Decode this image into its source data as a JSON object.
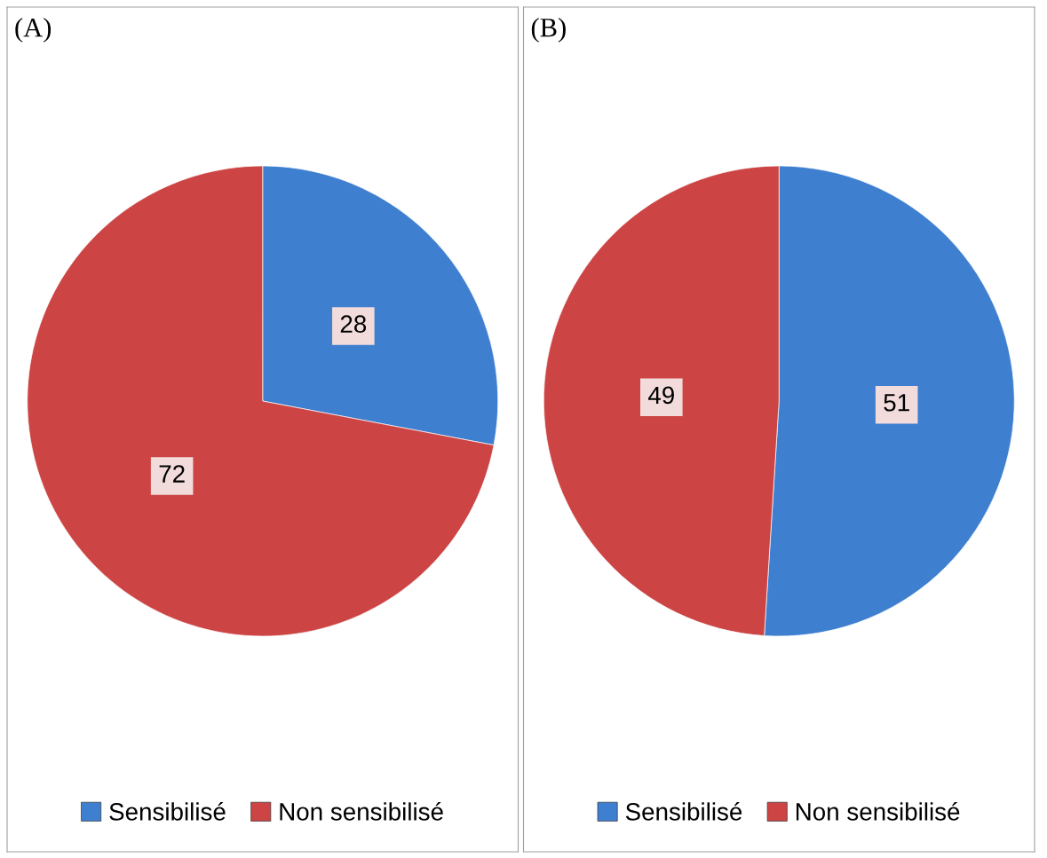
{
  "chart_data": [
    {
      "type": "pie",
      "title": "(A)",
      "categories": [
        "Sensibilisé",
        "Non sensibilisé"
      ],
      "values": [
        28,
        72
      ],
      "colors": [
        "#3f7fcf",
        "#cc4444"
      ],
      "data_labels": true,
      "legend": "bottom"
    },
    {
      "type": "pie",
      "title": "(B)",
      "categories": [
        "Sensibilisé",
        "Non sensibilisé"
      ],
      "values": [
        51,
        49
      ],
      "colors": [
        "#3f7fcf",
        "#cc4444"
      ],
      "data_labels": true,
      "legend": "bottom"
    }
  ]
}
